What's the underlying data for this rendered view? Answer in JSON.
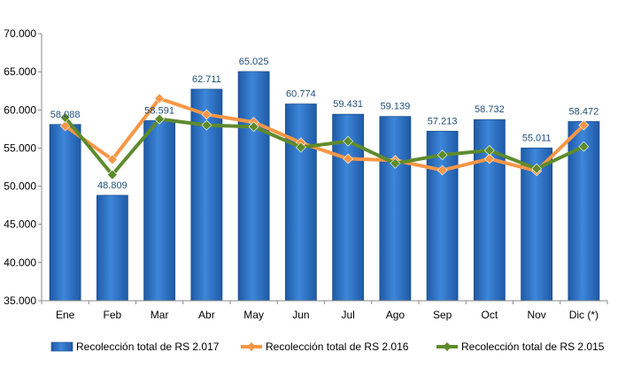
{
  "chart_data": {
    "type": "bar",
    "categories": [
      "Ene",
      "Feb",
      "Mar",
      "Abr",
      "May",
      "Jun",
      "Jul",
      "Ago",
      "Sep",
      "Oct",
      "Nov",
      "Dic (*)"
    ],
    "ylim": [
      35000,
      70000
    ],
    "yticks": [
      35000,
      40000,
      45000,
      50000,
      55000,
      60000,
      65000,
      70000
    ],
    "ytick_labels": [
      "35.000",
      "40.000",
      "45.000",
      "50.000",
      "55.000",
      "60.000",
      "65.000",
      "70.000"
    ],
    "grid": false,
    "legend_position": "bottom",
    "series": [
      {
        "name": "Recolección total de RS 2.017",
        "kind": "bar",
        "color": "#2f72c2",
        "values": [
          58088,
          48809,
          58591,
          62711,
          65025,
          60774,
          59431,
          59139,
          57213,
          58732,
          55011,
          58472
        ],
        "labels": [
          "58.088",
          "48.809",
          "58.591",
          "62.711",
          "65.025",
          "60.774",
          "59.431",
          "59.139",
          "57.213",
          "58.732",
          "55.011",
          "58.472"
        ]
      },
      {
        "name": "Recolección total de RS 2.016",
        "kind": "line",
        "color": "#f79646",
        "values": [
          57900,
          53500,
          61500,
          59400,
          58400,
          55700,
          53600,
          53400,
          52100,
          53600,
          52000,
          58000
        ]
      },
      {
        "name": "Recolección total de RS 2.015",
        "kind": "line",
        "color": "#5e8b2c",
        "values": [
          59000,
          51500,
          58800,
          58000,
          57800,
          55100,
          55900,
          53000,
          54100,
          54700,
          52300,
          55200
        ]
      }
    ]
  }
}
